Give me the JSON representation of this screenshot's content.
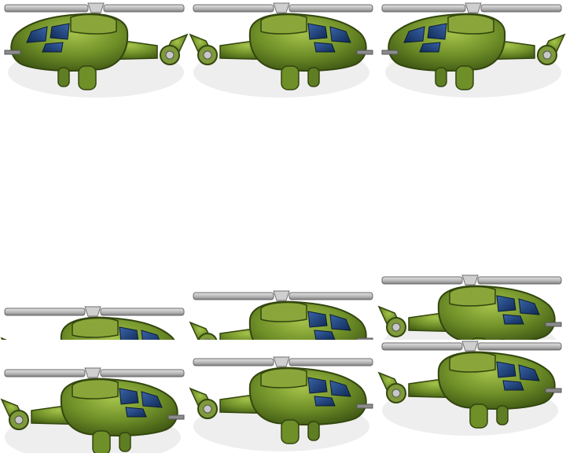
{
  "sheet": {
    "sprite": "attack-helicopter",
    "colors": {
      "rotor": "#b8b8b8",
      "body": "#6f8f28",
      "body_light": "#a4c24a",
      "body_dark": "#3f5714",
      "window": "#1e3f72",
      "shadow": "#ebebeb"
    },
    "frames": [
      {
        "facing": "left"
      },
      {
        "facing": "right"
      },
      {
        "facing": "left"
      },
      {
        "facing": "right"
      },
      {
        "facing": "right"
      },
      {
        "facing": "right"
      },
      {
        "facing": "right"
      },
      {
        "facing": "right"
      },
      {
        "facing": "right"
      }
    ]
  }
}
